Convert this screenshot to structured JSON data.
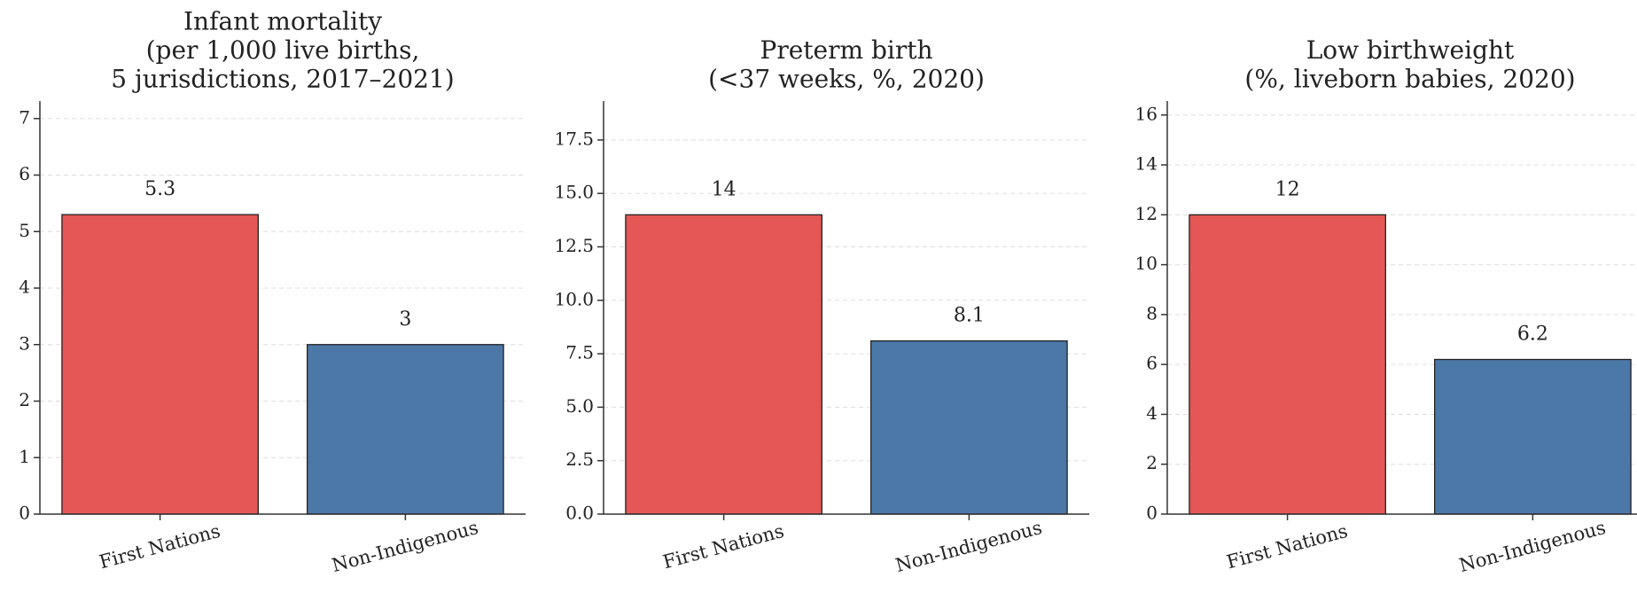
{
  "chart_data": [
    {
      "type": "bar",
      "title": [
        "Infant mortality",
        "(per 1,000 live births,",
        "5 jurisdictions, 2017–2021)"
      ],
      "categories": [
        "First Nations",
        "Non-Indigenous"
      ],
      "values": [
        5.3,
        3
      ],
      "colors": [
        "#e45756",
        "#4c78a8"
      ],
      "ylim": [
        0,
        7.31
      ],
      "yticks": [
        0,
        1,
        2,
        3,
        4,
        5,
        6,
        7
      ],
      "grid": true
    },
    {
      "type": "bar",
      "title": [
        "Preterm birth",
        "(<37 weeks, %, 2020)"
      ],
      "categories": [
        "First Nations",
        "Non-Indigenous"
      ],
      "values": [
        14,
        8.1
      ],
      "colors": [
        "#e45756",
        "#4c78a8"
      ],
      "ylim": [
        0,
        19.32
      ],
      "yticks": [
        {
          "value": 0,
          "label": "0.0"
        },
        2.5,
        {
          "value": 5,
          "label": "5.0"
        },
        7.5,
        {
          "value": 10,
          "label": "10.0"
        },
        12.5,
        {
          "value": 15,
          "label": "15.0"
        },
        17.5
      ],
      "grid": true
    },
    {
      "type": "bar",
      "title": [
        "Low birthweight",
        "(%, liveborn babies, 2020)"
      ],
      "categories": [
        "First Nations",
        "Non-Indigenous"
      ],
      "values": [
        12,
        6.2
      ],
      "colors": [
        "#e45756",
        "#4c78a8"
      ],
      "ylim": [
        0,
        16.56
      ],
      "yticks": [
        0,
        2,
        4,
        6,
        8,
        10,
        12,
        14,
        16
      ],
      "grid": true
    }
  ]
}
